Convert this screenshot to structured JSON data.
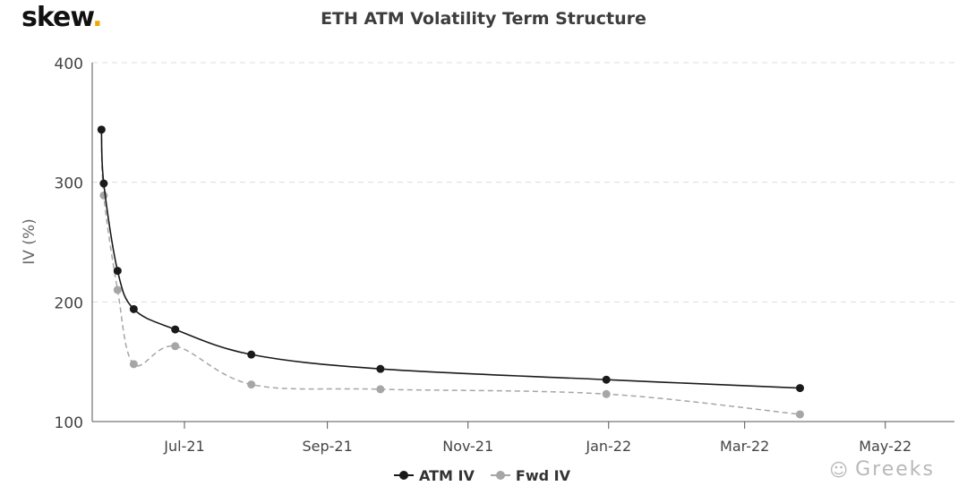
{
  "brand": {
    "name": "skew",
    "dot": "."
  },
  "watermark": {
    "icon": "wechat-icon",
    "text": "Greeks"
  },
  "chart_data": {
    "type": "line",
    "title": "ETH ATM Volatility Term Structure",
    "xlabel": "",
    "ylabel": "IV (%)",
    "ylim": [
      100,
      400
    ],
    "yticks": [
      100,
      200,
      300,
      400
    ],
    "xlim": [
      "2021-05-22",
      "2022-05-31"
    ],
    "xticks": [
      {
        "date": "2021-07-01",
        "label": "Jul-21"
      },
      {
        "date": "2021-09-01",
        "label": "Sep-21"
      },
      {
        "date": "2021-11-01",
        "label": "Nov-21"
      },
      {
        "date": "2022-01-01",
        "label": "Jan-22"
      },
      {
        "date": "2022-03-01",
        "label": "Mar-22"
      },
      {
        "date": "2022-05-01",
        "label": "May-22"
      }
    ],
    "grid": "horizontal dashed",
    "legend_position": "bottom-center",
    "series": [
      {
        "name": "ATM IV",
        "color": "#1a1a1a",
        "style": "solid",
        "points": [
          {
            "x": "2021-05-26",
            "y": 344
          },
          {
            "x": "2021-05-27",
            "y": 299
          },
          {
            "x": "2021-06-02",
            "y": 226
          },
          {
            "x": "2021-06-09",
            "y": 194
          },
          {
            "x": "2021-06-27",
            "y": 177
          },
          {
            "x": "2021-07-30",
            "y": 156
          },
          {
            "x": "2021-09-24",
            "y": 144
          },
          {
            "x": "2021-12-31",
            "y": 135
          },
          {
            "x": "2022-03-25",
            "y": 128
          }
        ]
      },
      {
        "name": "Fwd IV",
        "color": "#a6a6a6",
        "style": "dashed",
        "points": [
          {
            "x": "2021-05-26",
            "y": 344
          },
          {
            "x": "2021-05-27",
            "y": 289
          },
          {
            "x": "2021-06-02",
            "y": 210
          },
          {
            "x": "2021-06-09",
            "y": 148
          },
          {
            "x": "2021-06-27",
            "y": 163
          },
          {
            "x": "2021-07-30",
            "y": 131
          },
          {
            "x": "2021-09-24",
            "y": 127
          },
          {
            "x": "2021-12-31",
            "y": 123
          },
          {
            "x": "2022-03-25",
            "y": 106
          }
        ]
      }
    ]
  }
}
